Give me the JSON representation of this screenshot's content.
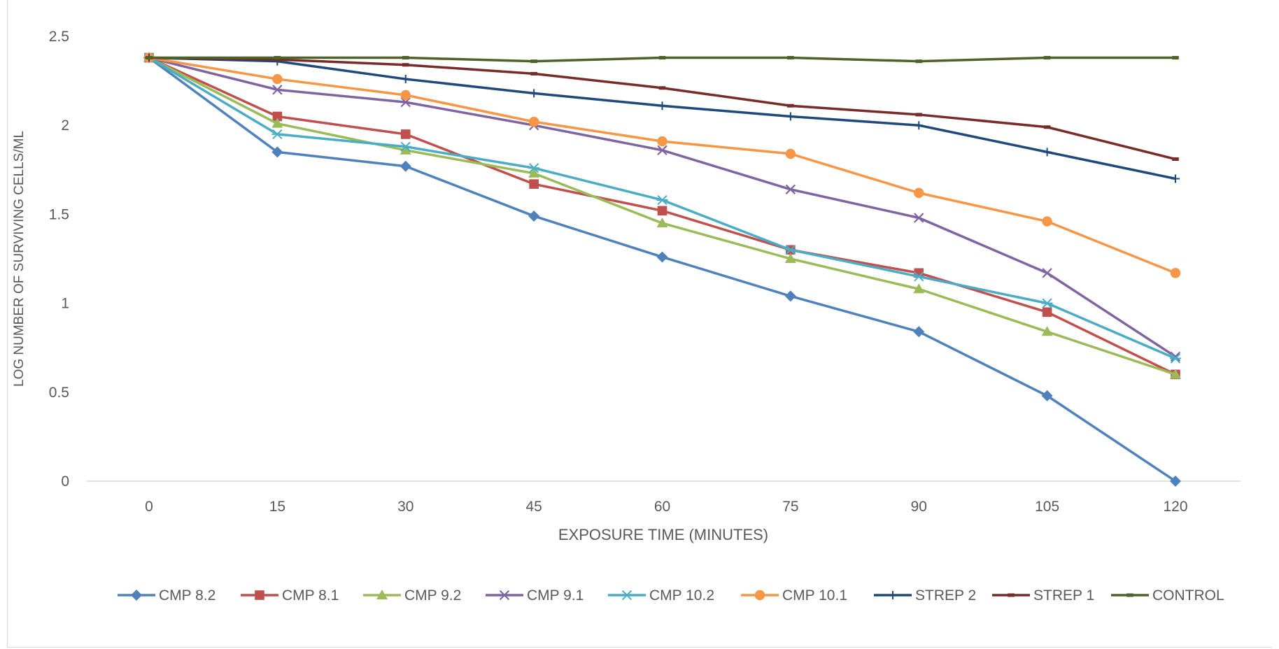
{
  "chart_data": {
    "type": "line",
    "title": "",
    "xlabel": "EXPOSURE TIME (MINUTES)",
    "ylabel": "LOG NUMBER OF SURVIVING CELLS/ML",
    "x": [
      0,
      15,
      30,
      45,
      60,
      75,
      90,
      105,
      120
    ],
    "x_tick_labels": [
      "0",
      "15",
      "30",
      "45",
      "60",
      "75",
      "90",
      "105",
      "120"
    ],
    "ylim": [
      0,
      2.5
    ],
    "y_ticks": [
      0,
      0.5,
      1,
      1.5,
      2,
      2.5
    ],
    "y_tick_labels": [
      "0",
      "0.5",
      "1",
      "1.5",
      "2",
      "2.5"
    ],
    "grid": false,
    "legend_position": "bottom",
    "series": [
      {
        "name": "CMP 8.2",
        "color": "#4f81bd",
        "marker": "diamond",
        "values": [
          2.38,
          1.85,
          1.77,
          1.49,
          1.26,
          1.04,
          0.84,
          0.48,
          0.0
        ]
      },
      {
        "name": "CMP 8.1",
        "color": "#c0504d",
        "marker": "square",
        "values": [
          2.38,
          2.05,
          1.95,
          1.67,
          1.52,
          1.3,
          1.17,
          0.95,
          0.6
        ]
      },
      {
        "name": "CMP 9.2",
        "color": "#9bbb59",
        "marker": "triangle",
        "values": [
          2.38,
          2.01,
          1.86,
          1.73,
          1.45,
          1.25,
          1.08,
          0.84,
          0.6
        ]
      },
      {
        "name": "CMP 9.1",
        "color": "#8064a2",
        "marker": "x",
        "values": [
          2.38,
          2.2,
          2.13,
          2.0,
          1.86,
          1.64,
          1.48,
          1.17,
          0.7
        ]
      },
      {
        "name": "CMP 10.2",
        "color": "#4bacc6",
        "marker": "asterisk",
        "values": [
          2.38,
          1.95,
          1.88,
          1.76,
          1.58,
          1.3,
          1.15,
          1.0,
          0.69
        ]
      },
      {
        "name": "CMP 10.1",
        "color": "#f79646",
        "marker": "circle",
        "values": [
          2.38,
          2.26,
          2.17,
          2.02,
          1.91,
          1.84,
          1.62,
          1.46,
          1.17
        ]
      },
      {
        "name": "STREP 2",
        "color": "#1f497d",
        "marker": "plus",
        "values": [
          2.38,
          2.36,
          2.26,
          2.18,
          2.11,
          2.05,
          2.0,
          1.85,
          1.7
        ]
      },
      {
        "name": "STREP 1",
        "color": "#772c2a",
        "marker": "dash",
        "values": [
          2.38,
          2.37,
          2.34,
          2.29,
          2.21,
          2.11,
          2.06,
          1.99,
          1.81
        ]
      },
      {
        "name": "CONTROL",
        "color": "#4f6228",
        "marker": "dash",
        "values": [
          2.38,
          2.38,
          2.38,
          2.36,
          2.38,
          2.38,
          2.36,
          2.38,
          2.38
        ]
      }
    ]
  }
}
